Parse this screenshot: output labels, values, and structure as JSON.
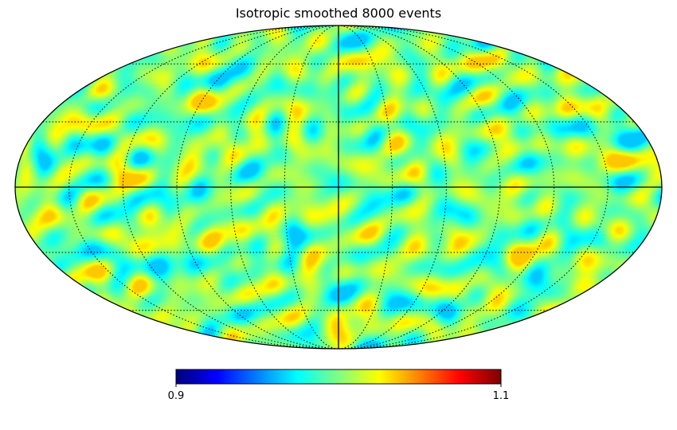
{
  "chart_data": {
    "type": "heatmap",
    "title": "Isotropic smoothed 8000 events",
    "projection": "mollweide",
    "colormap": "jet",
    "colorbar": {
      "min": 0.9,
      "max": 1.1,
      "min_label": "0.9",
      "max_label": "1.1",
      "orientation": "horizontal",
      "placement": "bottom-center"
    },
    "graticule": {
      "meridian_step_deg": 30,
      "parallel_step_deg": 30,
      "style": "dotted",
      "equator_and_central_meridian": "solid"
    },
    "map_values": {
      "mean": 1.0,
      "typical_range": [
        0.97,
        1.03
      ],
      "description_values_near": [
        0.975,
        0.985,
        1.0,
        1.015,
        1.025
      ]
    }
  },
  "colors": {
    "frame": "#000000",
    "background": "#ffffff",
    "jet_stops": [
      "#00007f",
      "#0000ff",
      "#007fff",
      "#00ffff",
      "#7fff7f",
      "#ffff00",
      "#ff7f00",
      "#ff0000",
      "#7f0000"
    ]
  }
}
